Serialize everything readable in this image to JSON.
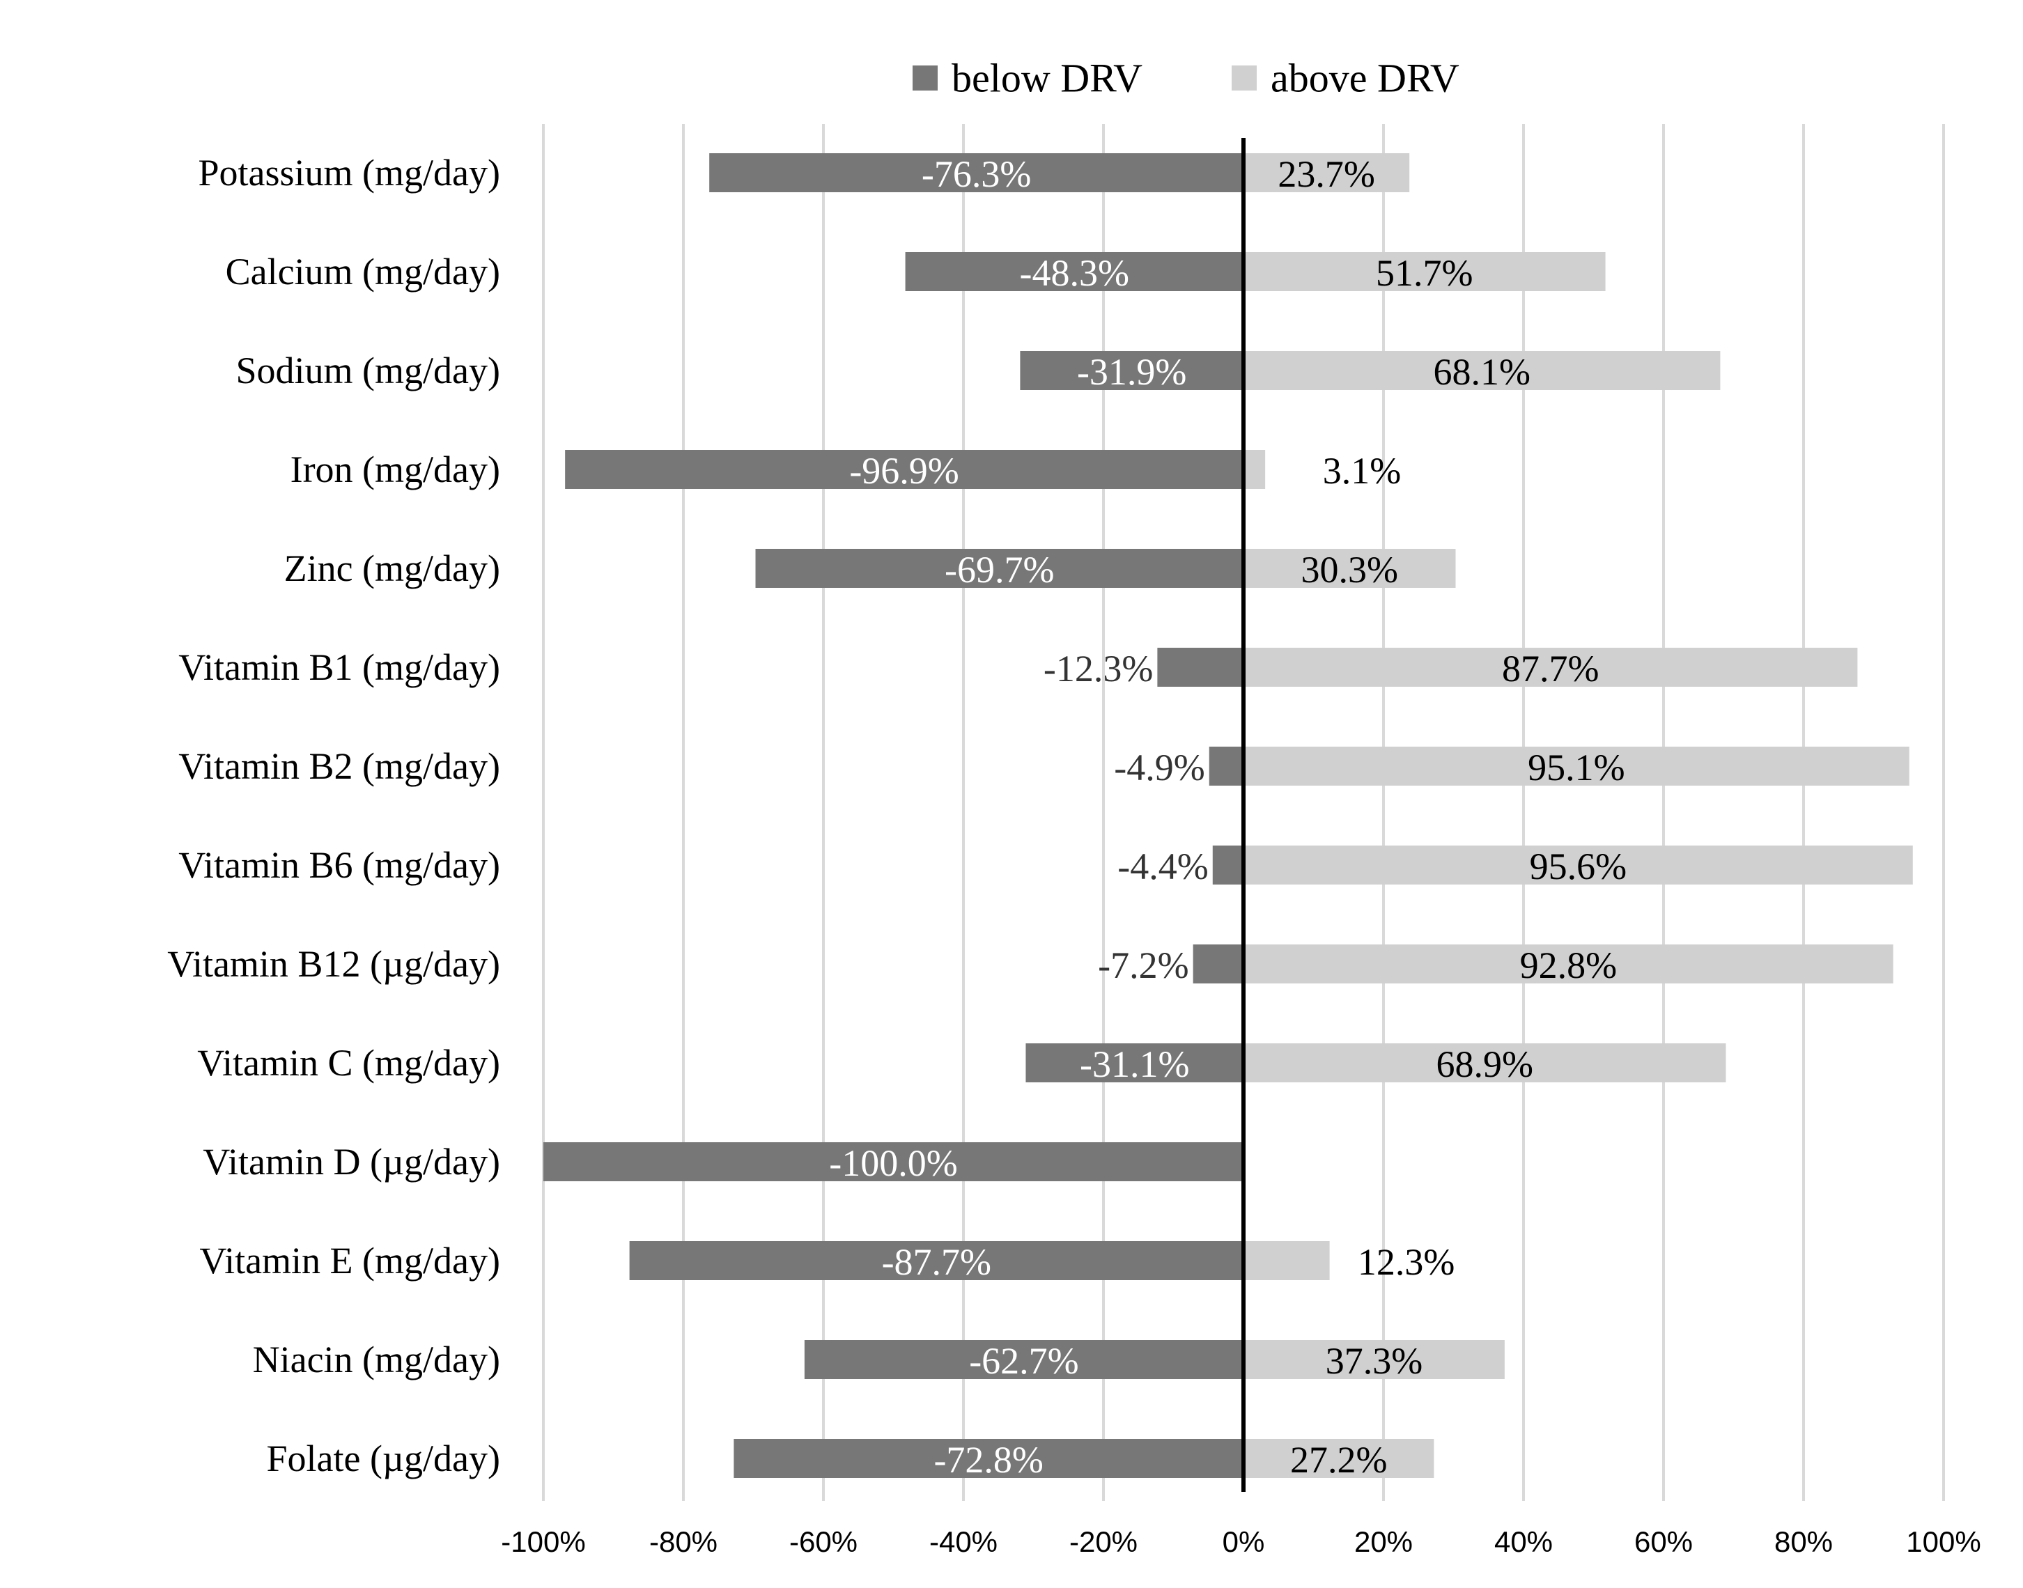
{
  "chart_data": {
    "type": "bar",
    "orientation": "horizontal",
    "stacked": "diverging",
    "title": "",
    "xlabel": "",
    "ylabel": "",
    "xlim": [
      -100,
      100
    ],
    "x_ticks": [
      -100,
      -80,
      -60,
      -40,
      -20,
      0,
      20,
      40,
      60,
      80,
      100
    ],
    "x_tick_labels": [
      "-100%",
      "-80%",
      "-60%",
      "-40%",
      "-20%",
      "0%",
      "20%",
      "40%",
      "60%",
      "80%",
      "100%"
    ],
    "grid": true,
    "legend_position": "top-center",
    "categories": [
      "Potassium (mg/day)",
      "Calcium (mg/day)",
      "Sodium (mg/day)",
      "Iron (mg/day)",
      "Zinc (mg/day)",
      "Vitamin B1 (mg/day)",
      "Vitamin B2 (mg/day)",
      "Vitamin B6 (mg/day)",
      "Vitamin B12 (µg/day)",
      "Vitamin C (mg/day)",
      "Vitamin D (µg/day)",
      "Vitamin E (mg/day)",
      "Niacin (mg/day)",
      "Folate (µg/day)"
    ],
    "series": [
      {
        "name": "below DRV",
        "color": "#777777",
        "label_color": "#ffffff",
        "values": [
          -76.3,
          -48.3,
          -31.9,
          -96.9,
          -69.7,
          -12.3,
          -4.9,
          -4.4,
          -7.2,
          -31.1,
          -100.0,
          -87.7,
          -62.7,
          -72.8
        ],
        "labels": [
          "-76.3%",
          "-48.3%",
          "-31.9%",
          "-96.9%",
          "-69.7%",
          "-12.3%",
          "-4.9%",
          "-4.4%",
          "-7.2%",
          "-31.1%",
          "-100.0%",
          "-87.7%",
          "-62.7%",
          "-72.8%"
        ]
      },
      {
        "name": "above DRV",
        "color": "#d0d0d0",
        "label_color": "#000000",
        "values": [
          23.7,
          51.7,
          68.1,
          3.1,
          30.3,
          87.7,
          95.1,
          95.6,
          92.8,
          68.9,
          0,
          12.3,
          37.3,
          27.2
        ],
        "labels": [
          "23.7%",
          "51.7%",
          "68.1%",
          "3.1%",
          "30.3%",
          "87.7%",
          "95.1%",
          "95.6%",
          "92.8%",
          "68.9%",
          "",
          "12.3%",
          "37.3%",
          "27.2%"
        ]
      }
    ]
  }
}
